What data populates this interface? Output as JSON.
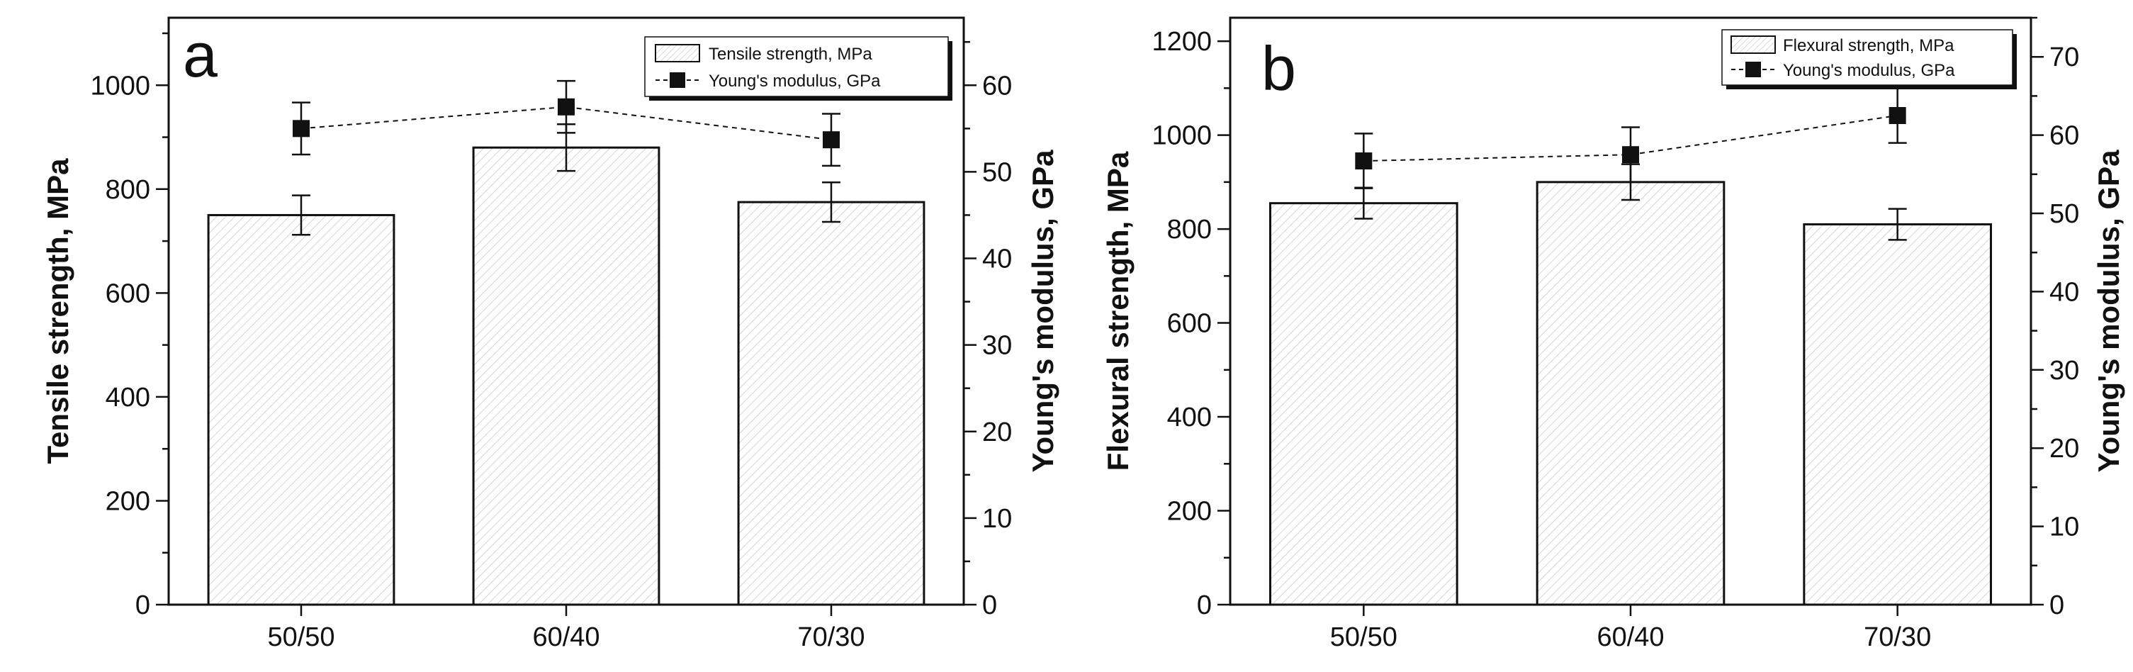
{
  "chart_data": [
    {
      "type": "bar",
      "panel": "a",
      "categories": [
        "50/50",
        "60/40",
        "70/30"
      ],
      "bar_series": {
        "name": "Tensile  strength, MPa",
        "values": [
          750,
          880,
          775
        ],
        "errors": [
          38,
          45,
          38
        ]
      },
      "line_series": {
        "name": "Young's modulus, GPa",
        "values": [
          55,
          57.5,
          53.7
        ],
        "errors": [
          3,
          3,
          3
        ]
      },
      "ylabel": "Tensile strength, MPa",
      "ylim": [
        0,
        1130
      ],
      "yticks": [
        0,
        200,
        400,
        600,
        800,
        1000
      ],
      "ylabel2": "Young's modulus, GPa",
      "ylim2": [
        0,
        67.8
      ],
      "yticks2": [
        0,
        10,
        20,
        30,
        40,
        50,
        60
      ],
      "legend_position": "top-right"
    },
    {
      "type": "bar",
      "panel": "b",
      "categories": [
        "50/50",
        "60/40",
        "70/30"
      ],
      "bar_series": {
        "name": "Flexural strength, MPa",
        "values": [
          855,
          900,
          810
        ],
        "errors": [
          33,
          38,
          33
        ]
      },
      "line_series": {
        "name": "Young's modulus, GPa",
        "values": [
          56.7,
          57.5,
          62.5
        ],
        "errors": [
          3.5,
          3.5,
          3.5
        ]
      },
      "ylabel": "Flexural strength, MPa",
      "ylim": [
        0,
        1250
      ],
      "yticks": [
        0,
        200,
        400,
        600,
        800,
        1000,
        1200
      ],
      "ylabel2": "Young's modulus, GPa",
      "ylim2": [
        0,
        75
      ],
      "yticks2": [
        0,
        10,
        20,
        30,
        40,
        50,
        60,
        70
      ],
      "legend_position": "top-right"
    }
  ]
}
